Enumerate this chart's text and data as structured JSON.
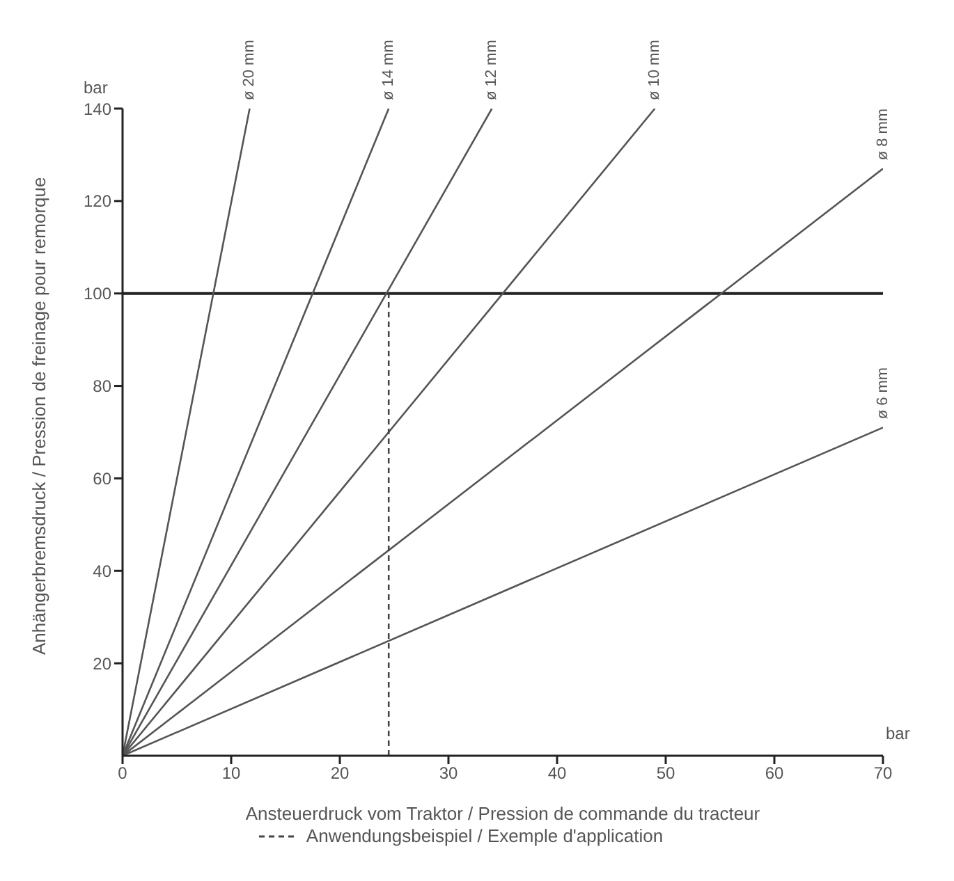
{
  "chart_data": {
    "type": "line",
    "xlabel": "Ansteuerdruck vom Traktor / Pression de commande du tracteur",
    "ylabel": "Anhängerbremsdruck / Pression de freinage pour remorque",
    "annotations": [
      "bar",
      "bar"
    ],
    "xlim": [
      0,
      70
    ],
    "xticks": [
      {
        "value": 0,
        "label": "0"
      },
      10,
      20,
      30,
      40,
      50,
      60,
      70
    ],
    "ylim": [
      0,
      140
    ],
    "yticks": [
      20,
      40,
      60,
      80,
      100,
      120,
      140
    ],
    "legend": "bottom",
    "marker": "none",
    "series": [
      {
        "name": "ø 20 mm",
        "color": "#555555",
        "x": [
          0,
          11.7
        ],
        "values": [
          0,
          140
        ]
      },
      {
        "name": "ø 14 mm",
        "color": "#555555",
        "x": [
          0,
          24.5
        ],
        "values": [
          0,
          140
        ]
      },
      {
        "name": "ø 12 mm",
        "color": "#555555",
        "x": [
          0,
          34
        ],
        "values": [
          0,
          140
        ]
      },
      {
        "name": "ø 10 mm",
        "color": "#555555",
        "x": [
          0,
          49
        ],
        "values": [
          0,
          140
        ]
      },
      {
        "name": "ø 8 mm",
        "color": "#555555",
        "x": [
          0,
          70
        ],
        "values": [
          0,
          127
        ]
      },
      {
        "name": "ø 6 mm",
        "color": "#555555",
        "x": [
          0,
          70
        ],
        "values": [
          0,
          71
        ]
      },
      {
        "name": "Anwendungsbeispiel / Exemple d'application",
        "color": "#444444",
        "line_style": "dashed",
        "x": [
          24.5,
          24.5
        ],
        "values": [
          0,
          100
        ]
      }
    ],
    "ref_lines": [
      {
        "axis": "y",
        "value": 100,
        "color": "#222222"
      }
    ]
  }
}
